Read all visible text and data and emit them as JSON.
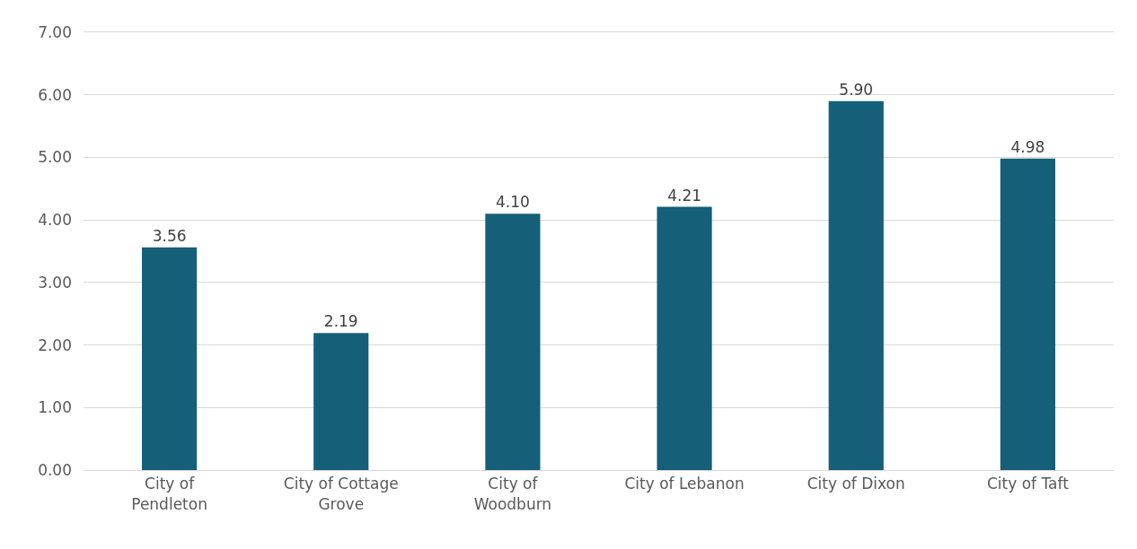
{
  "chart_data": {
    "type": "bar",
    "categories": [
      "City of Pendleton",
      "City of Cottage Grove",
      "City of Woodburn",
      "City of Lebanon",
      "City of Dixon",
      "City of Taft"
    ],
    "values": [
      3.56,
      2.19,
      4.1,
      4.21,
      5.9,
      4.98
    ],
    "value_labels": [
      "3.56",
      "2.19",
      "4.10",
      "4.21",
      "5.90",
      "4.98"
    ],
    "color": "#155f78",
    "ylim": [
      0,
      7
    ],
    "yticks": [
      {
        "value": 0,
        "label": "0.00"
      },
      {
        "value": 1,
        "label": "1.00"
      },
      {
        "value": 2,
        "label": "2.00"
      },
      {
        "value": 3,
        "label": "3.00"
      },
      {
        "value": 4,
        "label": "4.00"
      },
      {
        "value": 5,
        "label": "5.00"
      },
      {
        "value": 6,
        "label": "6.00"
      },
      {
        "value": 7,
        "label": "7.00"
      }
    ],
    "grid": "y"
  }
}
